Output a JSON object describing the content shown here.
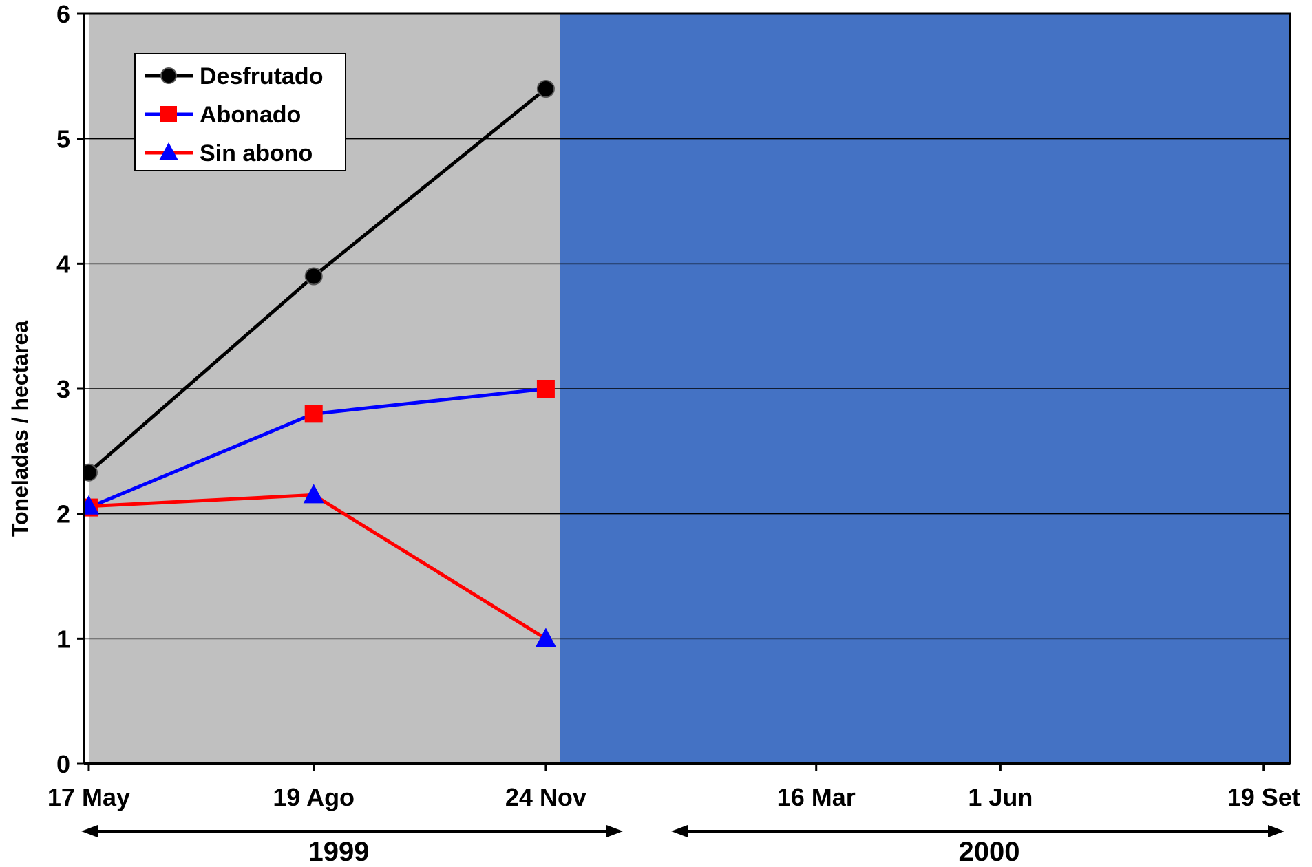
{
  "chart_data": {
    "type": "line",
    "title": "",
    "xlabel": "",
    "ylabel": "Toneladas / hectarea",
    "ylim": [
      0,
      6
    ],
    "yticks": [
      0,
      1,
      2,
      3,
      4,
      5,
      6
    ],
    "grid": true,
    "legend_position": "top-left",
    "x_ticks": [
      {
        "label": "17 May",
        "date": "1999-05-17"
      },
      {
        "label": "19 Ago",
        "date": "1999-08-19"
      },
      {
        "label": "24 Nov",
        "date": "1999-11-24"
      },
      {
        "label": "16 Mar",
        "date": "2000-03-16"
      },
      {
        "label": "1 Jun",
        "date": "2000-06-01"
      },
      {
        "label": "19 Set",
        "date": "2000-09-19"
      }
    ],
    "periods": [
      {
        "label": "1999",
        "start": "1999-05-17",
        "end": "1999-12-31"
      },
      {
        "label": "2000",
        "start": "2000-01-01",
        "end": "2000-09-19"
      }
    ],
    "shaded_regions": [
      {
        "start": "1999-05-17",
        "end": "1999-11-30",
        "color": "#c0c0c0"
      },
      {
        "start": "1999-11-30",
        "end": "2000-09-30",
        "color": "#4472c4"
      }
    ],
    "series": [
      {
        "name": "Desfrutado",
        "line_color": "#000000",
        "marker": "circle",
        "marker_color": "#000000",
        "points": [
          {
            "x": "1999-05-17",
            "y": 2.33
          },
          {
            "x": "1999-08-19",
            "y": 3.9
          },
          {
            "x": "1999-11-24",
            "y": 5.4
          }
        ]
      },
      {
        "name": "Abonado",
        "line_color": "#0000ff",
        "marker": "square",
        "marker_color": "#ff0000",
        "points": [
          {
            "x": "1999-05-17",
            "y": 2.05
          },
          {
            "x": "1999-08-19",
            "y": 2.8
          },
          {
            "x": "1999-11-24",
            "y": 3.0
          }
        ]
      },
      {
        "name": "Sin abono",
        "line_color": "#ff0000",
        "marker": "triangle",
        "marker_color": "#0000ff",
        "points": [
          {
            "x": "1999-05-17",
            "y": 2.06
          },
          {
            "x": "1999-08-19",
            "y": 2.15
          },
          {
            "x": "1999-11-24",
            "y": 1.0
          }
        ]
      }
    ]
  }
}
